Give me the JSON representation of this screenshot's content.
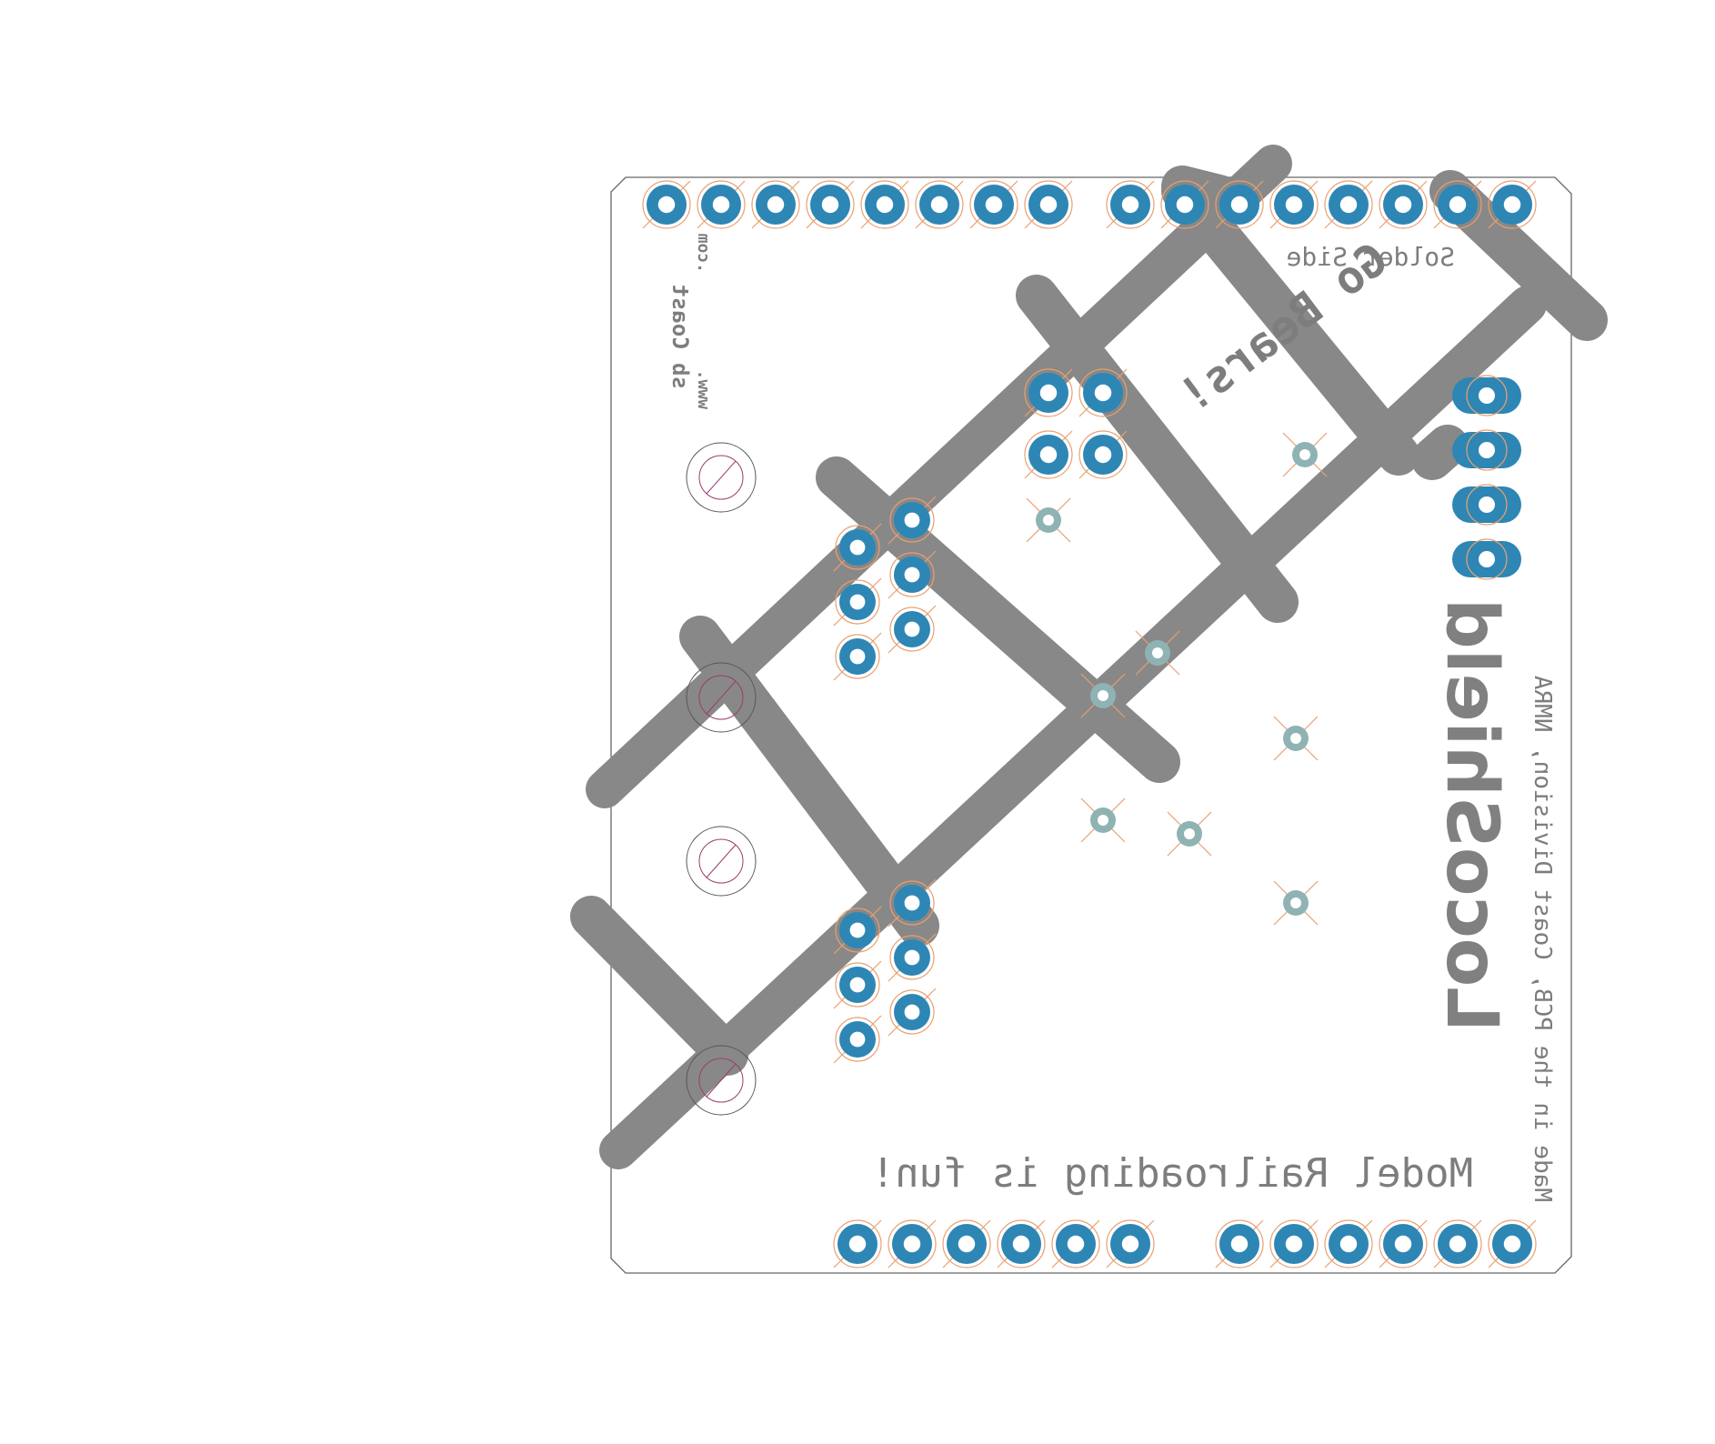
{
  "board": {
    "texts": {
      "solder_side": "Solder Side",
      "go_bears": "Go Bears!",
      "title": "LocoShield",
      "slogan": "Model Railroading is fun!",
      "credit": "Made in the PCB, Coast Division, NMRA",
      "site_line1": "sb Coast",
      "site_line2": ".com",
      "site_line3": "www."
    }
  },
  "colors": {
    "trace": "#888888",
    "pad": "#2e86b4",
    "via": "#8fb3b3",
    "outline": "#666666",
    "keepout": "#e8a070",
    "hole": "#9b3c6c"
  }
}
